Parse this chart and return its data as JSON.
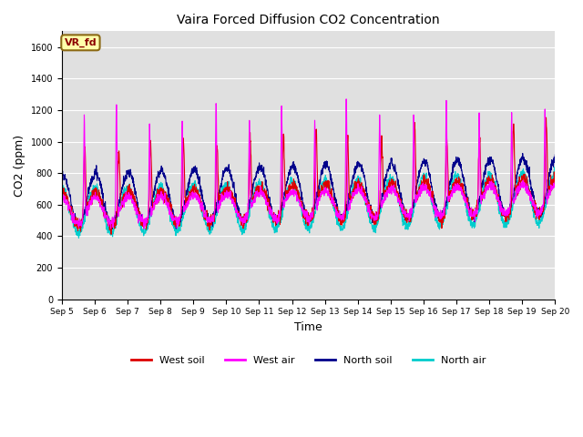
{
  "title": "Vaira Forced Diffusion CO2 Concentration",
  "xlabel": "Time",
  "ylabel": "CO2 (ppm)",
  "ylim": [
    0,
    1700
  ],
  "yticks": [
    0,
    200,
    400,
    600,
    800,
    1000,
    1200,
    1400,
    1600
  ],
  "label_tag": "VR_fd",
  "legend": [
    "West soil",
    "West air",
    "North soil",
    "North air"
  ],
  "colors": [
    "#dd0000",
    "#ff00ff",
    "#00008b",
    "#00cccc"
  ],
  "bg_color": "#e0e0e0",
  "n_days": 15,
  "points_per_day": 144,
  "xtick_labels": [
    "Sep 5",
    "Sep 6",
    "Sep 7",
    "Sep 8",
    "Sep 9",
    "Sep 10",
    "Sep 11",
    "Sep 12",
    "Sep 13",
    "Sep 14",
    "Sep 15",
    "Sep 16",
    "Sep 17",
    "Sep 18",
    "Sep 19",
    "Sep 20"
  ]
}
